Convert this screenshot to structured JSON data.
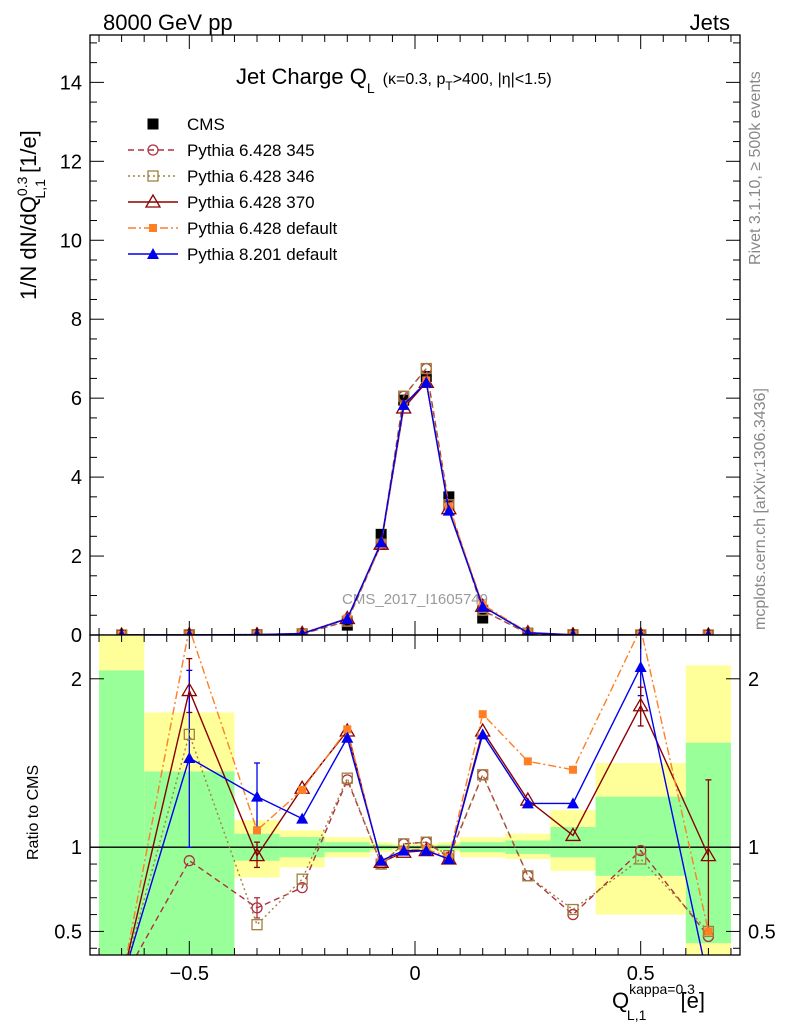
{
  "header": {
    "left": "8000 GeV pp",
    "right": "Jets"
  },
  "side_text": {
    "rivet": "Rivet 3.1.10, ≥ 500k events",
    "mcplots": "mcplots.cern.ch [arXiv:1306.3436]"
  },
  "watermark": "CMS_2017_I1605749",
  "chart_data": [
    {
      "type": "line",
      "panel": "main",
      "title": "Jet Charge Q_L (κ=0.3, p_T>400, |η|<1.5)",
      "title_parts": {
        "main": "Jet Charge Q",
        "main_sub": "L",
        "cond_a": "(κ=0.3, p",
        "cond_sub": "T",
        "cond_b": ">400, |η|<1.5)"
      },
      "ylabel": "1/N dN/dQ^{0.3}_{L,1} [1/e]",
      "ylabel_parts": {
        "a": "1/N dN/dQ",
        "sup": "0.3",
        "sub": "L,1",
        "b": " [1/e]"
      },
      "xlim": [
        -0.72,
        0.72
      ],
      "ylim": [
        0,
        15.2
      ],
      "yticks": [
        0,
        2,
        4,
        6,
        8,
        10,
        12,
        14
      ],
      "grid": false,
      "legend_position": "top-left",
      "x": [
        -0.65,
        -0.5,
        -0.35,
        -0.25,
        -0.15,
        -0.075,
        -0.025,
        0.025,
        0.075,
        0.15,
        0.25,
        0.35,
        0.5,
        0.65
      ],
      "series": [
        {
          "name": "CMS",
          "color": "#000000",
          "marker": "filled-square",
          "line": "none",
          "values": [
            0.001,
            0.003,
            0.009,
            0.03,
            0.25,
            2.55,
            5.95,
            6.55,
            3.5,
            0.43,
            0.045,
            0.005,
            0.001,
            0.0005
          ]
        },
        {
          "name": "Pythia 6.428 345",
          "color": "#b03040",
          "marker": "open-circle",
          "line": "dashed",
          "values": [
            0.0,
            0.003,
            0.006,
            0.023,
            0.35,
            2.3,
            6.05,
            6.75,
            3.3,
            0.62,
            0.037,
            0.003,
            0.001,
            0.0
          ]
        },
        {
          "name": "Pythia 6.428 346",
          "color": "#a08040",
          "marker": "open-square",
          "line": "dotted",
          "values": [
            0.0,
            0.005,
            0.005,
            0.024,
            0.35,
            2.3,
            6.05,
            6.75,
            3.3,
            0.63,
            0.037,
            0.003,
            0.001,
            0.0
          ]
        },
        {
          "name": "Pythia 6.428 370",
          "color": "#8b0000",
          "marker": "open-triangle",
          "line": "solid",
          "values": [
            0.0,
            0.006,
            0.009,
            0.04,
            0.42,
            2.3,
            5.75,
            6.4,
            3.2,
            0.73,
            0.058,
            0.005,
            0.002,
            0.0
          ]
        },
        {
          "name": "Pythia 6.428 default",
          "color": "#ff7f24",
          "marker": "filled-square-small",
          "line": "dash-dot",
          "values": [
            0.0,
            0.007,
            0.01,
            0.04,
            0.42,
            2.3,
            5.8,
            6.45,
            3.25,
            0.77,
            0.067,
            0.007,
            0.002,
            0.0
          ]
        },
        {
          "name": "Pythia 8.201 default",
          "color": "#0000ee",
          "marker": "filled-triangle",
          "line": "solid",
          "values": [
            0.0,
            0.0045,
            0.012,
            0.035,
            0.41,
            2.35,
            5.83,
            6.4,
            3.15,
            0.72,
            0.057,
            0.006,
            0.002,
            0.0
          ]
        }
      ]
    },
    {
      "type": "line",
      "panel": "ratio",
      "ylabel": "Ratio to CMS",
      "xlabel": "Q^{kappa=0.3}_{L,1} [e]",
      "xlabel_parts": {
        "a": "Q",
        "sup": "kappa=0.3",
        "sub": "L,1",
        "b": " [e]"
      },
      "xlim": [
        -0.72,
        0.72
      ],
      "ylim": [
        0.36,
        2.26
      ],
      "yticks": [
        0.5,
        1,
        2
      ],
      "xticks": [
        -0.5,
        0,
        0.5
      ],
      "reference_line": 1,
      "bands": {
        "bin_edges": [
          -0.7,
          -0.6,
          -0.4,
          -0.3,
          -0.2,
          -0.1,
          -0.05,
          0.0,
          0.05,
          0.1,
          0.2,
          0.3,
          0.4,
          0.6,
          0.7
        ],
        "inner": [
          [
            0.2,
            2.05
          ],
          [
            0.2,
            1.45
          ],
          [
            0.92,
            1.08
          ],
          [
            0.94,
            1.06
          ],
          [
            0.97,
            1.03
          ],
          [
            0.985,
            1.015
          ],
          [
            0.99,
            1.01
          ],
          [
            0.99,
            1.01
          ],
          [
            0.985,
            1.015
          ],
          [
            0.97,
            1.03
          ],
          [
            0.96,
            1.04
          ],
          [
            0.94,
            1.12
          ],
          [
            0.83,
            1.3
          ],
          [
            0.43,
            1.62
          ]
        ],
        "outer": [
          [
            0.2,
            2.3
          ],
          [
            0.65,
            1.8
          ],
          [
            0.82,
            1.16
          ],
          [
            0.88,
            1.1
          ],
          [
            0.94,
            1.06
          ],
          [
            0.97,
            1.03
          ],
          [
            0.98,
            1.02
          ],
          [
            0.98,
            1.02
          ],
          [
            0.97,
            1.03
          ],
          [
            0.94,
            1.06
          ],
          [
            0.93,
            1.08
          ],
          [
            0.86,
            1.22
          ],
          [
            0.6,
            1.5
          ],
          [
            0.2,
            2.08
          ]
        ],
        "inner_color": "#99ff99",
        "outer_color": "#ffff99"
      },
      "x": [
        -0.65,
        -0.5,
        -0.35,
        -0.25,
        -0.15,
        -0.075,
        -0.025,
        0.025,
        0.075,
        0.15,
        0.25,
        0.35,
        0.5,
        0.65
      ],
      "series": [
        {
          "name": "Pythia 6.428 345",
          "color": "#b03040",
          "marker": "open-circle",
          "line": "dashed",
          "values": [
            0.2,
            0.92,
            0.64,
            0.76,
            1.4,
            0.9,
            1.02,
            1.03,
            0.94,
            1.43,
            0.83,
            0.6,
            0.98,
            0.47
          ]
        },
        {
          "name": "Pythia 6.428 346",
          "color": "#a08040",
          "marker": "open-square",
          "line": "dotted",
          "values": [
            0.2,
            1.67,
            0.54,
            0.81,
            1.41,
            0.9,
            1.02,
            1.03,
            0.95,
            1.43,
            0.83,
            0.63,
            0.93,
            0.5
          ]
        },
        {
          "name": "Pythia 6.428 370",
          "color": "#8b0000",
          "marker": "open-triangle",
          "line": "solid",
          "values": [
            0.2,
            1.93,
            0.95,
            1.35,
            1.69,
            0.91,
            0.97,
            0.98,
            0.93,
            1.69,
            1.28,
            1.07,
            1.84,
            0.95
          ]
        },
        {
          "name": "Pythia 6.428 default",
          "color": "#ff7f24",
          "marker": "filled-square-small",
          "line": "dash-dot",
          "values": [
            0.2,
            2.3,
            1.1,
            1.34,
            1.7,
            0.91,
            0.98,
            0.99,
            0.94,
            1.79,
            1.51,
            1.46,
            2.3,
            0.5
          ]
        },
        {
          "name": "Pythia 8.201 default",
          "color": "#0000ee",
          "marker": "filled-triangle",
          "line": "solid",
          "values": [
            0.2,
            1.53,
            1.3,
            1.17,
            1.65,
            0.92,
            0.98,
            0.98,
            0.93,
            1.67,
            1.26,
            1.26,
            2.07,
            0.2
          ]
        }
      ],
      "error_bars": [
        {
          "series": "Pythia 6.428 370",
          "x": 0.65,
          "low": 0.5,
          "high": 1.4
        },
        {
          "series": "Pythia 6.428 370",
          "x": -0.5,
          "low": 1.8,
          "high": 2.12
        },
        {
          "series": "Pythia 8.201 default",
          "x": -0.5,
          "low": 1.0,
          "high": 2.05
        },
        {
          "series": "Pythia 8.201 default",
          "x": -0.35,
          "low": 1.12,
          "high": 1.5
        },
        {
          "series": "Pythia 8.201 default",
          "x": 0.5,
          "low": 1.9,
          "high": 2.3
        },
        {
          "series": "Pythia 6.428 370",
          "x": 0.5,
          "low": 1.72,
          "high": 1.95
        },
        {
          "series": "Pythia 6.428 370",
          "x": -0.35,
          "low": 0.88,
          "high": 1.03
        },
        {
          "series": "Pythia 6.428 345",
          "x": -0.35,
          "low": 0.58,
          "high": 0.7
        }
      ]
    }
  ]
}
